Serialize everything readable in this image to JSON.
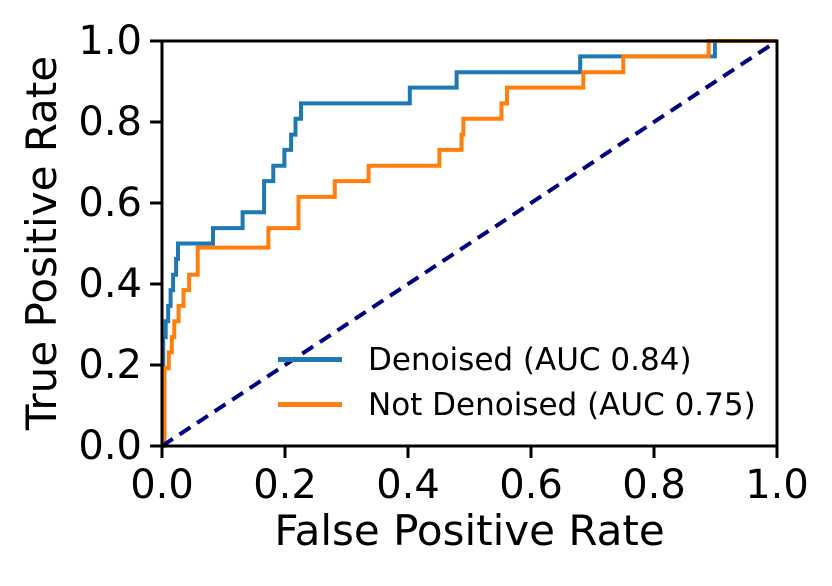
{
  "chart_data": {
    "type": "line",
    "subtype": "roc-step-curves",
    "title": "",
    "xlabel": "False Positive Rate",
    "ylabel": "True Positive Rate",
    "xlim": [
      0.0,
      1.0
    ],
    "ylim": [
      0.0,
      1.0
    ],
    "grid": false,
    "frame": "box",
    "x_ticks": [
      {
        "value": 0.0,
        "label": "0.0"
      },
      {
        "value": 0.2,
        "label": "0.2"
      },
      {
        "value": 0.4,
        "label": "0.4"
      },
      {
        "value": 0.6,
        "label": "0.6"
      },
      {
        "value": 0.8,
        "label": "0.8"
      },
      {
        "value": 1.0,
        "label": "1.0"
      }
    ],
    "y_ticks": [
      {
        "value": 0.0,
        "label": "0.0"
      },
      {
        "value": 0.2,
        "label": "0.2"
      },
      {
        "value": 0.4,
        "label": "0.4"
      },
      {
        "value": 0.6,
        "label": "0.6"
      },
      {
        "value": 0.8,
        "label": "0.8"
      },
      {
        "value": 1.0,
        "label": "1.0"
      }
    ],
    "legend_position": "lower center",
    "series": [
      {
        "name": "Denoised (AUC 0.84)",
        "auc": 0.84,
        "color": "#1f77b4",
        "line_style": "solid",
        "in_legend": true,
        "points": [
          [
            0.0,
            0.0
          ],
          [
            0.002,
            0.0
          ],
          [
            0.002,
            0.269
          ],
          [
            0.006,
            0.269
          ],
          [
            0.006,
            0.308
          ],
          [
            0.01,
            0.308
          ],
          [
            0.01,
            0.346
          ],
          [
            0.014,
            0.346
          ],
          [
            0.014,
            0.385
          ],
          [
            0.018,
            0.385
          ],
          [
            0.018,
            0.423
          ],
          [
            0.023,
            0.423
          ],
          [
            0.023,
            0.462
          ],
          [
            0.026,
            0.462
          ],
          [
            0.026,
            0.5
          ],
          [
            0.083,
            0.5
          ],
          [
            0.083,
            0.538
          ],
          [
            0.131,
            0.538
          ],
          [
            0.131,
            0.577
          ],
          [
            0.166,
            0.577
          ],
          [
            0.166,
            0.654
          ],
          [
            0.181,
            0.654
          ],
          [
            0.181,
            0.692
          ],
          [
            0.199,
            0.692
          ],
          [
            0.199,
            0.731
          ],
          [
            0.21,
            0.731
          ],
          [
            0.21,
            0.769
          ],
          [
            0.217,
            0.769
          ],
          [
            0.217,
            0.808
          ],
          [
            0.226,
            0.808
          ],
          [
            0.226,
            0.846
          ],
          [
            0.403,
            0.846
          ],
          [
            0.403,
            0.885
          ],
          [
            0.479,
            0.885
          ],
          [
            0.479,
            0.923
          ],
          [
            0.68,
            0.923
          ],
          [
            0.68,
            0.962
          ],
          [
            0.899,
            0.962
          ],
          [
            0.899,
            1.0
          ],
          [
            1.0,
            1.0
          ]
        ]
      },
      {
        "name": "Not Denoised (AUC 0.75)",
        "auc": 0.75,
        "color": "#ff7f0e",
        "line_style": "solid",
        "in_legend": true,
        "points": [
          [
            0.0,
            0.0
          ],
          [
            0.004,
            0.0
          ],
          [
            0.004,
            0.192
          ],
          [
            0.011,
            0.192
          ],
          [
            0.011,
            0.231
          ],
          [
            0.016,
            0.231
          ],
          [
            0.016,
            0.269
          ],
          [
            0.02,
            0.269
          ],
          [
            0.02,
            0.308
          ],
          [
            0.027,
            0.308
          ],
          [
            0.027,
            0.346
          ],
          [
            0.035,
            0.346
          ],
          [
            0.035,
            0.385
          ],
          [
            0.044,
            0.385
          ],
          [
            0.044,
            0.423
          ],
          [
            0.058,
            0.423
          ],
          [
            0.058,
            0.49
          ],
          [
            0.173,
            0.49
          ],
          [
            0.173,
            0.538
          ],
          [
            0.222,
            0.538
          ],
          [
            0.222,
            0.615
          ],
          [
            0.281,
            0.615
          ],
          [
            0.281,
            0.654
          ],
          [
            0.336,
            0.654
          ],
          [
            0.336,
            0.692
          ],
          [
            0.451,
            0.692
          ],
          [
            0.451,
            0.731
          ],
          [
            0.487,
            0.731
          ],
          [
            0.487,
            0.769
          ],
          [
            0.49,
            0.769
          ],
          [
            0.49,
            0.808
          ],
          [
            0.552,
            0.808
          ],
          [
            0.552,
            0.846
          ],
          [
            0.561,
            0.846
          ],
          [
            0.561,
            0.885
          ],
          [
            0.685,
            0.885
          ],
          [
            0.685,
            0.923
          ],
          [
            0.75,
            0.923
          ],
          [
            0.75,
            0.962
          ],
          [
            0.889,
            0.962
          ],
          [
            0.889,
            1.0
          ],
          [
            1.0,
            1.0
          ]
        ]
      },
      {
        "name": "chance-diagonal",
        "color": "#000080",
        "line_style": "dashed",
        "in_legend": false,
        "points": [
          [
            0.0,
            0.0
          ],
          [
            1.0,
            1.0
          ]
        ]
      }
    ],
    "colors": {
      "denoised": "#1f77b4",
      "not_denoised": "#ff7f0e",
      "chance_line": "#000080",
      "axes": "#000000",
      "background": "#ffffff"
    }
  }
}
